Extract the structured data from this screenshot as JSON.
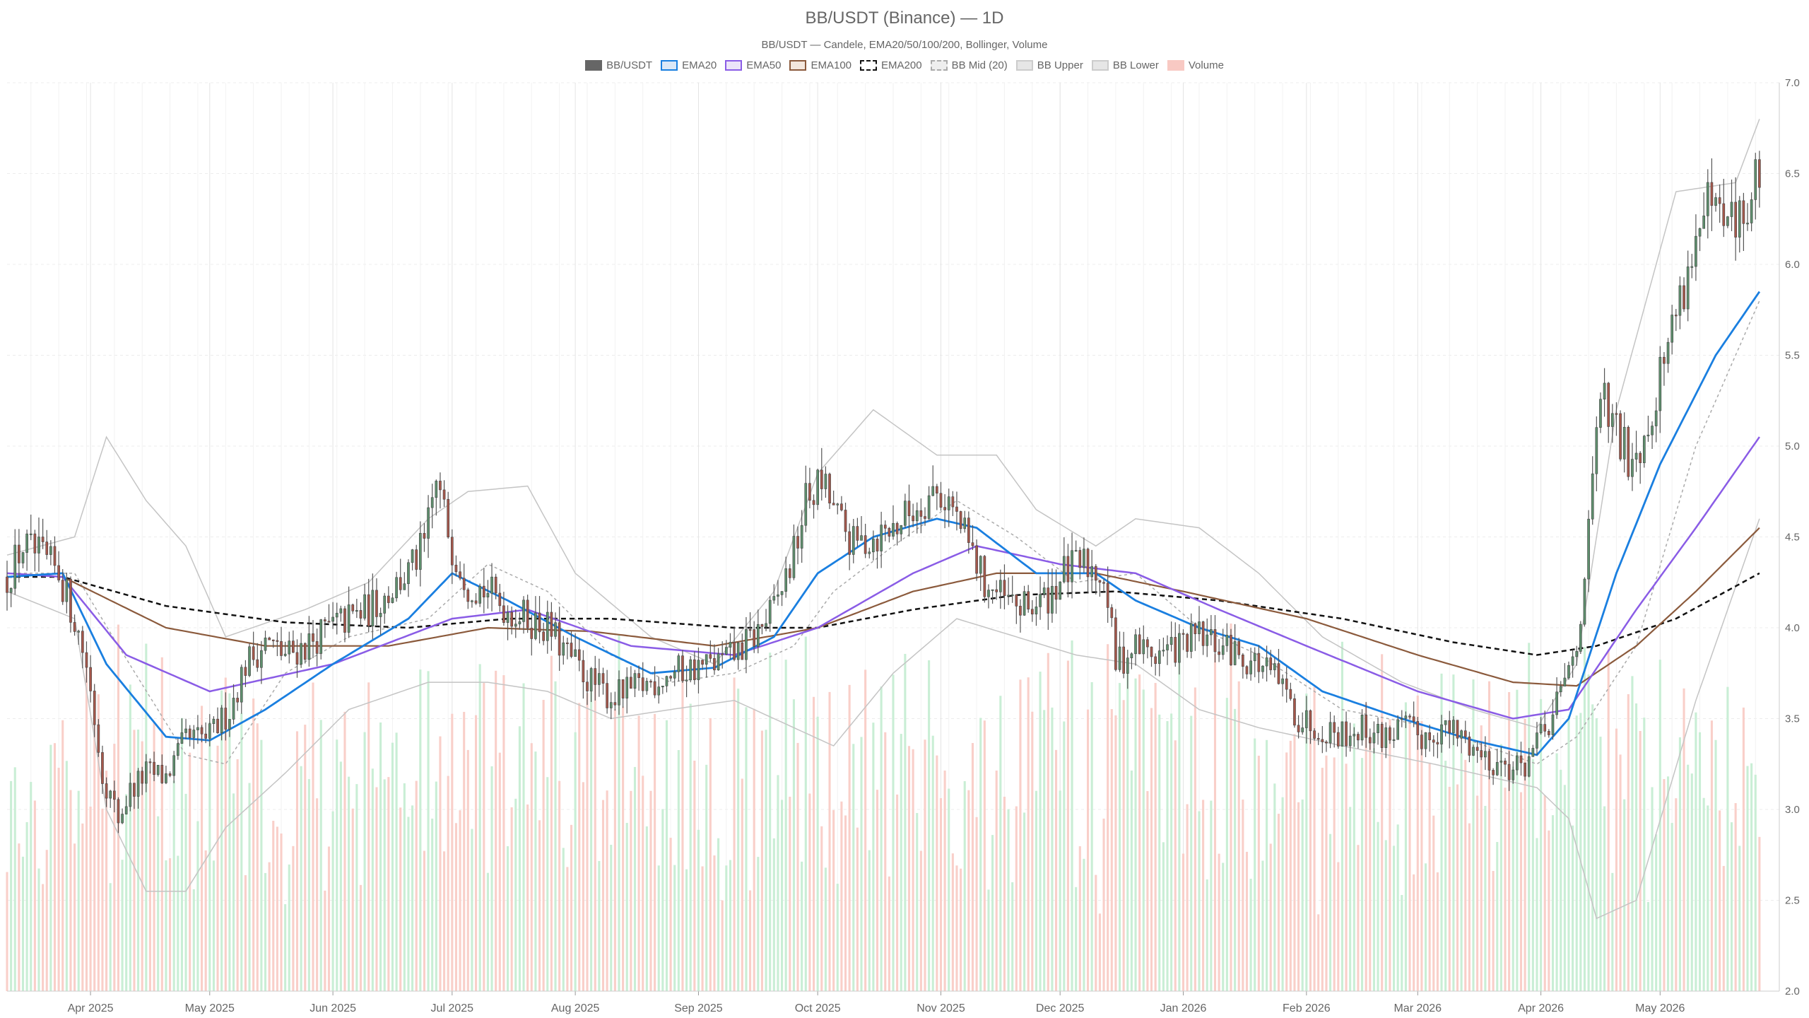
{
  "chart_data": {
    "type": "candlestick",
    "title": "BB/USDT (Binance) — 1D",
    "subtitle": "BB/USDT — Candele, EMA20/50/100/200, Bollinger, Volume",
    "legend": [
      {
        "label": "BB/USDT",
        "fill": "#666666",
        "stroke": "#666666",
        "dash": false
      },
      {
        "label": "EMA20",
        "fill": "#dbe8f7",
        "stroke": "#1a7fe0",
        "dash": false
      },
      {
        "label": "EMA50",
        "fill": "#ece3f9",
        "stroke": "#8a5ce6",
        "dash": false
      },
      {
        "label": "EMA100",
        "fill": "#f4e7dd",
        "stroke": "#8b5a3c",
        "dash": false
      },
      {
        "label": "EMA200",
        "fill": "#ffffff",
        "stroke": "#111111",
        "dash": true
      },
      {
        "label": "BB Mid (20)",
        "fill": "#eeeeee",
        "stroke": "#aaaaaa",
        "dash": true
      },
      {
        "label": "BB Upper",
        "fill": "#e6e6e6",
        "stroke": "#cccccc",
        "dash": false
      },
      {
        "label": "BB Lower",
        "fill": "#e6e6e6",
        "stroke": "#cccccc",
        "dash": false
      },
      {
        "label": "Volume",
        "fill": "#f8c9c3",
        "stroke": "#f8c9c3",
        "dash": false
      }
    ],
    "x_range": [
      "2025-03-11",
      "2026-05-31"
    ],
    "month_ticks": [
      "Apr 2025",
      "May 2025",
      "Jun 2025",
      "Jul 2025",
      "Aug 2025",
      "Sep 2025",
      "Oct 2025",
      "Nov 2025",
      "Dec 2025",
      "Jan 2026",
      "Feb 2026",
      "Mar 2026",
      "Apr 2026",
      "May 2026"
    ],
    "month_tick_dates": [
      "2025-04-01",
      "2025-05-01",
      "2025-06-01",
      "2025-07-01",
      "2025-08-01",
      "2025-09-01",
      "2025-10-01",
      "2025-11-01",
      "2025-12-01",
      "2026-01-01",
      "2026-02-01",
      "2026-03-01",
      "2026-04-01",
      "2026-05-01"
    ],
    "y_ticks": [
      "2.0",
      "2.5",
      "3.0",
      "3.5",
      "4.0",
      "4.5",
      "5.0",
      "5.5",
      "6.0",
      "6.5",
      "7.0"
    ],
    "ylim": [
      2.0,
      7.0
    ],
    "grid": true,
    "legend_position": "top-center",
    "colors": {
      "up": "#5e8f6d",
      "down": "#a5574b",
      "wick": "#555555",
      "vol_up": "#c9eed5",
      "vol_down": "#f9cfc9",
      "ema20": "#1a7fe0",
      "ema50": "#8a5ce6",
      "ema100": "#8b5a3c",
      "ema200": "#111111",
      "bb_mid": "#aaaaaa",
      "bb_band": "#c4c4c4",
      "grid": "#ececec"
    },
    "close_anchors": [
      [
        "2025-03-11",
        4.28
      ],
      [
        "2025-03-15",
        4.45
      ],
      [
        "2025-03-20",
        4.38
      ],
      [
        "2025-03-24",
        4.3
      ],
      [
        "2025-03-28",
        4.05
      ],
      [
        "2025-03-31",
        3.8
      ],
      [
        "2025-04-04",
        3.2
      ],
      [
        "2025-04-08",
        2.95
      ],
      [
        "2025-04-11",
        3.1
      ],
      [
        "2025-04-15",
        3.2
      ],
      [
        "2025-04-20",
        3.18
      ],
      [
        "2025-04-25",
        3.38
      ],
      [
        "2025-05-01",
        3.4
      ],
      [
        "2025-05-06",
        3.55
      ],
      [
        "2025-05-10",
        3.8
      ],
      [
        "2025-05-15",
        3.92
      ],
      [
        "2025-05-20",
        3.85
      ],
      [
        "2025-05-25",
        3.9
      ],
      [
        "2025-05-31",
        4.0
      ],
      [
        "2025-06-05",
        4.05
      ],
      [
        "2025-06-10",
        4.1
      ],
      [
        "2025-06-15",
        4.2
      ],
      [
        "2025-06-20",
        4.3
      ],
      [
        "2025-06-24",
        4.45
      ],
      [
        "2025-06-27",
        4.8
      ],
      [
        "2025-07-01",
        4.45
      ],
      [
        "2025-07-05",
        4.25
      ],
      [
        "2025-07-10",
        4.2
      ],
      [
        "2025-07-15",
        4.1
      ],
      [
        "2025-07-20",
        4.05
      ],
      [
        "2025-07-25",
        4.0
      ],
      [
        "2025-07-30",
        3.85
      ],
      [
        "2025-08-05",
        3.7
      ],
      [
        "2025-08-10",
        3.62
      ],
      [
        "2025-08-15",
        3.65
      ],
      [
        "2025-08-20",
        3.7
      ],
      [
        "2025-08-25",
        3.75
      ],
      [
        "2025-08-31",
        3.78
      ],
      [
        "2025-09-05",
        3.8
      ],
      [
        "2025-09-10",
        3.85
      ],
      [
        "2025-09-15",
        3.95
      ],
      [
        "2025-09-20",
        4.1
      ],
      [
        "2025-09-25",
        4.4
      ],
      [
        "2025-09-28",
        4.7
      ],
      [
        "2025-10-02",
        4.8
      ],
      [
        "2025-10-06",
        4.6
      ],
      [
        "2025-10-10",
        4.45
      ],
      [
        "2025-10-15",
        4.5
      ],
      [
        "2025-10-20",
        4.55
      ],
      [
        "2025-10-25",
        4.65
      ],
      [
        "2025-10-30",
        4.75
      ],
      [
        "2025-11-03",
        4.7
      ],
      [
        "2025-11-07",
        4.5
      ],
      [
        "2025-11-12",
        4.25
      ],
      [
        "2025-11-17",
        4.15
      ],
      [
        "2025-11-22",
        4.1
      ],
      [
        "2025-11-27",
        4.15
      ],
      [
        "2025-12-02",
        4.3
      ],
      [
        "2025-12-07",
        4.35
      ],
      [
        "2025-12-12",
        4.3
      ],
      [
        "2025-12-15",
        3.8
      ],
      [
        "2025-12-20",
        3.9
      ],
      [
        "2025-12-25",
        3.85
      ],
      [
        "2025-12-31",
        3.9
      ],
      [
        "2026-01-05",
        3.95
      ],
      [
        "2026-01-10",
        3.9
      ],
      [
        "2026-01-15",
        3.85
      ],
      [
        "2026-01-20",
        3.8
      ],
      [
        "2026-01-25",
        3.7
      ],
      [
        "2026-01-30",
        3.5
      ],
      [
        "2026-02-05",
        3.45
      ],
      [
        "2026-02-10",
        3.42
      ],
      [
        "2026-02-15",
        3.45
      ],
      [
        "2026-02-20",
        3.4
      ],
      [
        "2026-02-25",
        3.45
      ],
      [
        "2026-03-02",
        3.4
      ],
      [
        "2026-03-07",
        3.45
      ],
      [
        "2026-03-12",
        3.4
      ],
      [
        "2026-03-17",
        3.3
      ],
      [
        "2026-03-22",
        3.25
      ],
      [
        "2026-03-27",
        3.22
      ],
      [
        "2026-03-31",
        3.35
      ],
      [
        "2026-04-04",
        3.5
      ],
      [
        "2026-04-07",
        3.7
      ],
      [
        "2026-04-10",
        3.9
      ],
      [
        "2026-04-13",
        4.5
      ],
      [
        "2026-04-16",
        5.3
      ],
      [
        "2026-04-19",
        5.1
      ],
      [
        "2026-04-23",
        4.95
      ],
      [
        "2026-04-27",
        5.05
      ],
      [
        "2026-05-01",
        5.4
      ],
      [
        "2026-05-05",
        5.75
      ],
      [
        "2026-05-09",
        6.05
      ],
      [
        "2026-05-13",
        6.3
      ],
      [
        "2026-05-17",
        6.2
      ],
      [
        "2026-05-21",
        6.25
      ],
      [
        "2026-05-24",
        6.3
      ],
      [
        "2026-05-26",
        6.55
      ]
    ],
    "indicator_anchors": {
      "ema20": [
        [
          "2025-03-11",
          4.28
        ],
        [
          "2025-03-25",
          4.3
        ],
        [
          "2025-04-05",
          3.8
        ],
        [
          "2025-04-20",
          3.4
        ],
        [
          "2025-05-01",
          3.38
        ],
        [
          "2025-05-15",
          3.55
        ],
        [
          "2025-06-01",
          3.8
        ],
        [
          "2025-06-20",
          4.05
        ],
        [
          "2025-07-01",
          4.3
        ],
        [
          "2025-07-15",
          4.15
        ],
        [
          "2025-08-01",
          3.95
        ],
        [
          "2025-08-20",
          3.75
        ],
        [
          "2025-09-05",
          3.78
        ],
        [
          "2025-09-20",
          3.95
        ],
        [
          "2025-10-01",
          4.3
        ],
        [
          "2025-10-15",
          4.5
        ],
        [
          "2025-10-31",
          4.6
        ],
        [
          "2025-11-10",
          4.55
        ],
        [
          "2025-11-25",
          4.3
        ],
        [
          "2025-12-10",
          4.3
        ],
        [
          "2025-12-20",
          4.15
        ],
        [
          "2026-01-05",
          4.0
        ],
        [
          "2026-01-20",
          3.9
        ],
        [
          "2026-02-05",
          3.65
        ],
        [
          "2026-02-25",
          3.5
        ],
        [
          "2026-03-15",
          3.38
        ],
        [
          "2026-03-31",
          3.3
        ],
        [
          "2026-04-08",
          3.5
        ],
        [
          "2026-04-20",
          4.3
        ],
        [
          "2026-05-01",
          4.9
        ],
        [
          "2026-05-15",
          5.5
        ],
        [
          "2026-05-26",
          5.85
        ]
      ],
      "ema50": [
        [
          "2025-03-11",
          4.3
        ],
        [
          "2025-03-25",
          4.28
        ],
        [
          "2025-04-10",
          3.85
        ],
        [
          "2025-05-01",
          3.65
        ],
        [
          "2025-06-01",
          3.8
        ],
        [
          "2025-07-01",
          4.05
        ],
        [
          "2025-07-20",
          4.1
        ],
        [
          "2025-08-15",
          3.9
        ],
        [
          "2025-09-10",
          3.85
        ],
        [
          "2025-10-01",
          4.0
        ],
        [
          "2025-10-25",
          4.3
        ],
        [
          "2025-11-10",
          4.45
        ],
        [
          "2025-12-01",
          4.35
        ],
        [
          "2025-12-20",
          4.3
        ],
        [
          "2026-01-10",
          4.1
        ],
        [
          "2026-02-01",
          3.9
        ],
        [
          "2026-03-01",
          3.65
        ],
        [
          "2026-03-25",
          3.5
        ],
        [
          "2026-04-08",
          3.55
        ],
        [
          "2026-04-25",
          4.1
        ],
        [
          "2026-05-10",
          4.55
        ],
        [
          "2026-05-26",
          5.05
        ]
      ],
      "ema100": [
        [
          "2025-03-11",
          4.3
        ],
        [
          "2025-03-25",
          4.28
        ],
        [
          "2025-04-20",
          4.0
        ],
        [
          "2025-05-15",
          3.9
        ],
        [
          "2025-06-15",
          3.9
        ],
        [
          "2025-07-10",
          4.0
        ],
        [
          "2025-08-05",
          3.98
        ],
        [
          "2025-09-05",
          3.9
        ],
        [
          "2025-10-01",
          4.0
        ],
        [
          "2025-10-25",
          4.2
        ],
        [
          "2025-11-15",
          4.3
        ],
        [
          "2025-12-10",
          4.3
        ],
        [
          "2026-01-01",
          4.2
        ],
        [
          "2026-02-01",
          4.05
        ],
        [
          "2026-03-01",
          3.85
        ],
        [
          "2026-03-25",
          3.7
        ],
        [
          "2026-04-10",
          3.68
        ],
        [
          "2026-04-25",
          3.9
        ],
        [
          "2026-05-10",
          4.2
        ],
        [
          "2026-05-26",
          4.55
        ]
      ],
      "ema200": [
        [
          "2025-03-11",
          4.28
        ],
        [
          "2025-03-25",
          4.28
        ],
        [
          "2025-04-20",
          4.12
        ],
        [
          "2025-05-20",
          4.03
        ],
        [
          "2025-06-20",
          4.0
        ],
        [
          "2025-07-15",
          4.05
        ],
        [
          "2025-08-10",
          4.05
        ],
        [
          "2025-09-10",
          4.0
        ],
        [
          "2025-10-01",
          4.0
        ],
        [
          "2025-10-25",
          4.1
        ],
        [
          "2025-11-20",
          4.18
        ],
        [
          "2025-12-15",
          4.2
        ],
        [
          "2026-01-10",
          4.15
        ],
        [
          "2026-02-10",
          4.05
        ],
        [
          "2026-03-10",
          3.92
        ],
        [
          "2026-03-31",
          3.85
        ],
        [
          "2026-04-15",
          3.9
        ],
        [
          "2026-05-05",
          4.05
        ],
        [
          "2026-05-26",
          4.3
        ]
      ],
      "bb_mid": [
        [
          "2025-03-11",
          4.3
        ],
        [
          "2025-03-28",
          4.3
        ],
        [
          "2025-04-08",
          3.9
        ],
        [
          "2025-04-25",
          3.3
        ],
        [
          "2025-05-05",
          3.25
        ],
        [
          "2025-05-20",
          3.75
        ],
        [
          "2025-06-05",
          3.95
        ],
        [
          "2025-06-25",
          4.05
        ],
        [
          "2025-07-10",
          4.35
        ],
        [
          "2025-07-25",
          4.2
        ],
        [
          "2025-08-10",
          3.85
        ],
        [
          "2025-08-25",
          3.7
        ],
        [
          "2025-09-10",
          3.75
        ],
        [
          "2025-09-25",
          3.9
        ],
        [
          "2025-10-05",
          4.2
        ],
        [
          "2025-10-20",
          4.45
        ],
        [
          "2025-11-05",
          4.7
        ],
        [
          "2025-11-20",
          4.5
        ],
        [
          "2025-12-05",
          4.25
        ],
        [
          "2025-12-20",
          4.3
        ],
        [
          "2026-01-05",
          4.0
        ],
        [
          "2026-01-20",
          3.85
        ],
        [
          "2026-02-10",
          3.55
        ],
        [
          "2026-03-05",
          3.45
        ],
        [
          "2026-03-31",
          3.25
        ],
        [
          "2026-04-10",
          3.4
        ],
        [
          "2026-04-25",
          3.9
        ],
        [
          "2026-05-10",
          5.0
        ],
        [
          "2026-05-26",
          5.8
        ]
      ],
      "bb_upper": [
        [
          "2025-03-11",
          4.4
        ],
        [
          "2025-03-28",
          4.5
        ],
        [
          "2025-04-05",
          5.05
        ],
        [
          "2025-04-15",
          4.7
        ],
        [
          "2025-04-25",
          4.45
        ],
        [
          "2025-05-05",
          3.95
        ],
        [
          "2025-05-25",
          4.1
        ],
        [
          "2025-06-10",
          4.25
        ],
        [
          "2025-06-25",
          4.6
        ],
        [
          "2025-07-05",
          4.75
        ],
        [
          "2025-07-20",
          4.78
        ],
        [
          "2025-08-01",
          4.3
        ],
        [
          "2025-08-20",
          3.95
        ],
        [
          "2025-09-05",
          3.8
        ],
        [
          "2025-09-20",
          4.2
        ],
        [
          "2025-10-01",
          4.85
        ],
        [
          "2025-10-15",
          5.2
        ],
        [
          "2025-10-31",
          4.95
        ],
        [
          "2025-11-15",
          4.95
        ],
        [
          "2025-11-25",
          4.65
        ],
        [
          "2025-12-10",
          4.45
        ],
        [
          "2025-12-20",
          4.6
        ],
        [
          "2026-01-05",
          4.55
        ],
        [
          "2026-01-20",
          4.3
        ],
        [
          "2026-02-05",
          3.95
        ],
        [
          "2026-02-25",
          3.7
        ],
        [
          "2026-03-15",
          3.55
        ],
        [
          "2026-03-31",
          3.45
        ],
        [
          "2026-04-10",
          3.8
        ],
        [
          "2026-04-20",
          5.2
        ],
        [
          "2026-05-05",
          6.4
        ],
        [
          "2026-05-20",
          6.45
        ],
        [
          "2026-05-26",
          6.8
        ]
      ],
      "bb_lower": [
        [
          "2025-03-11",
          4.2
        ],
        [
          "2025-03-28",
          4.05
        ],
        [
          "2025-04-05",
          3.0
        ],
        [
          "2025-04-15",
          2.55
        ],
        [
          "2025-04-25",
          2.55
        ],
        [
          "2025-05-05",
          2.9
        ],
        [
          "2025-05-20",
          3.2
        ],
        [
          "2025-06-05",
          3.55
        ],
        [
          "2025-06-25",
          3.7
        ],
        [
          "2025-07-10",
          3.7
        ],
        [
          "2025-07-25",
          3.65
        ],
        [
          "2025-08-10",
          3.5
        ],
        [
          "2025-08-25",
          3.55
        ],
        [
          "2025-09-10",
          3.6
        ],
        [
          "2025-09-25",
          3.45
        ],
        [
          "2025-10-05",
          3.35
        ],
        [
          "2025-10-20",
          3.75
        ],
        [
          "2025-11-05",
          4.05
        ],
        [
          "2025-11-20",
          3.95
        ],
        [
          "2025-12-05",
          3.85
        ],
        [
          "2025-12-20",
          3.8
        ],
        [
          "2026-01-05",
          3.55
        ],
        [
          "2026-01-20",
          3.45
        ],
        [
          "2026-02-10",
          3.35
        ],
        [
          "2026-03-05",
          3.25
        ],
        [
          "2026-03-31",
          3.12
        ],
        [
          "2026-04-08",
          2.95
        ],
        [
          "2026-04-15",
          2.4
        ],
        [
          "2026-04-25",
          2.5
        ],
        [
          "2026-05-10",
          3.6
        ],
        [
          "2026-05-26",
          4.6
        ]
      ]
    }
  }
}
